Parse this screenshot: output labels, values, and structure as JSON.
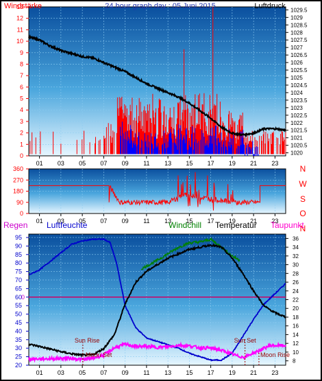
{
  "title": "24 hour graph day : 05 Juni 2015",
  "chart_data": [
    {
      "type": "line",
      "name": "wind-pressure",
      "left_label": "Windstärke",
      "right_label": "Luftdruck",
      "left_ticks": [
        "0",
        "1",
        "2",
        "3",
        "4",
        "5",
        "6",
        "7",
        "8",
        "9",
        "10",
        "11",
        "12",
        "13"
      ],
      "right_ticks": [
        "1020",
        "1020.5",
        "1021",
        "1021.5",
        "1022",
        "1022.5",
        "1023",
        "1023.5",
        "1024",
        "1024.5",
        "1025",
        "1025.5",
        "1026",
        "1026.5",
        "1027",
        "1027.5",
        "1028",
        "1028.5",
        "1029",
        "1029.5"
      ],
      "left_range": [
        0,
        13
      ],
      "right_range": [
        1019.8,
        1029.7
      ],
      "x_ticks": [
        "01",
        "03",
        "05",
        "07",
        "09",
        "11",
        "13",
        "15",
        "17",
        "19",
        "21",
        "23"
      ],
      "pressure_points": [
        [
          0,
          1027.7
        ],
        [
          1,
          1027.5
        ],
        [
          2,
          1027.1
        ],
        [
          3,
          1026.8
        ],
        [
          4,
          1026.6
        ],
        [
          5,
          1026.4
        ],
        [
          6,
          1026.3
        ],
        [
          7,
          1026.0
        ],
        [
          8,
          1025.7
        ],
        [
          9,
          1025.4
        ],
        [
          10,
          1025.0
        ],
        [
          11,
          1024.6
        ],
        [
          12,
          1024.3
        ],
        [
          13,
          1024.0
        ],
        [
          14,
          1023.7
        ],
        [
          15,
          1023.3
        ],
        [
          16,
          1022.8
        ],
        [
          17,
          1022.3
        ],
        [
          18,
          1021.7
        ],
        [
          19,
          1021.3
        ],
        [
          20,
          1021.2
        ],
        [
          21,
          1021.3
        ],
        [
          22,
          1021.6
        ],
        [
          23,
          1021.6
        ],
        [
          24,
          1021.5
        ]
      ],
      "wind_max_spike": 13
    },
    {
      "type": "line",
      "name": "wind-direction",
      "left_ticks": [
        "0",
        "90",
        "180",
        "270",
        "360"
      ],
      "left_range": [
        0,
        360
      ],
      "right_letters": [
        "N",
        "W",
        "S",
        "O",
        "N"
      ],
      "x_ticks": [
        "01",
        "03",
        "05",
        "07",
        "09",
        "11",
        "13",
        "15",
        "17",
        "19",
        "21",
        "23"
      ],
      "direction_points": [
        [
          0,
          225
        ],
        [
          7.5,
          225
        ],
        [
          8.5,
          90
        ],
        [
          13,
          90
        ],
        [
          14.5,
          150
        ],
        [
          17.5,
          110
        ],
        [
          19.5,
          90
        ],
        [
          21.5,
          90
        ],
        [
          21.6,
          225
        ],
        [
          24,
          225
        ]
      ]
    },
    {
      "type": "line",
      "name": "humidity-temperature",
      "labels": {
        "regen": "Regen",
        "humidity": "Luftfeuchte",
        "windchill": "Windchill",
        "temperature": "Temperatur",
        "dewpoint": "Taupunkt"
      },
      "left_ticks": [
        "20",
        "25",
        "30",
        "35",
        "40",
        "45",
        "50",
        "55",
        "60",
        "65",
        "70",
        "75",
        "80",
        "85",
        "90",
        "95"
      ],
      "left_range": [
        20,
        97
      ],
      "right_ticks": [
        "8",
        "10",
        "12",
        "14",
        "16",
        "18",
        "20",
        "22",
        "24",
        "26",
        "28",
        "30",
        "32",
        "34",
        "36"
      ],
      "right_range": [
        7,
        37
      ],
      "regen_tick": "0",
      "x_ticks": [
        "01",
        "03",
        "05",
        "07",
        "09",
        "11",
        "13",
        "15",
        "17",
        "19",
        "21",
        "23"
      ],
      "annotations": [
        "Sun Rise",
        "Moon Set",
        "Sun Set",
        "Moon Rise"
      ],
      "humidity_points": [
        [
          0,
          73
        ],
        [
          1,
          76
        ],
        [
          2,
          81
        ],
        [
          3,
          86
        ],
        [
          4,
          91
        ],
        [
          5,
          93
        ],
        [
          6,
          94
        ],
        [
          7,
          94
        ],
        [
          7.6,
          92
        ],
        [
          8.2,
          80
        ],
        [
          9,
          55
        ],
        [
          10,
          42
        ],
        [
          11,
          36
        ],
        [
          12,
          34
        ],
        [
          13,
          32
        ],
        [
          14,
          30
        ],
        [
          15,
          27
        ],
        [
          16,
          25
        ],
        [
          17,
          23
        ],
        [
          18,
          23
        ],
        [
          19,
          27
        ],
        [
          20,
          37
        ],
        [
          21,
          47
        ],
        [
          22,
          56
        ],
        [
          23,
          62
        ],
        [
          24,
          68
        ]
      ],
      "temperature_points": [
        [
          0,
          11.8
        ],
        [
          1,
          11.3
        ],
        [
          2,
          10.7
        ],
        [
          3,
          10.1
        ],
        [
          4,
          9.6
        ],
        [
          5,
          9.3
        ],
        [
          6,
          9.4
        ],
        [
          7,
          10.8
        ],
        [
          8,
          14
        ],
        [
          9,
          21
        ],
        [
          10,
          26
        ],
        [
          11,
          28.5
        ],
        [
          12,
          30
        ],
        [
          13,
          31.5
        ],
        [
          14,
          32.5
        ],
        [
          15,
          33.5
        ],
        [
          16,
          34
        ],
        [
          17,
          34.5
        ],
        [
          18,
          34
        ],
        [
          19,
          31.5
        ],
        [
          20,
          28
        ],
        [
          21,
          24
        ],
        [
          22,
          20.5
        ],
        [
          23,
          19
        ],
        [
          24,
          18
        ]
      ],
      "windchill_points": [
        [
          10.5,
          29
        ],
        [
          12,
          31
        ],
        [
          14,
          34
        ],
        [
          15,
          35
        ],
        [
          16,
          35.2
        ],
        [
          17,
          35.8
        ],
        [
          18,
          34
        ],
        [
          19,
          32
        ],
        [
          19.7,
          31
        ]
      ],
      "dewpoint_points": [
        [
          0,
          8.4
        ],
        [
          2,
          8.5
        ],
        [
          4,
          8.6
        ],
        [
          5,
          8.3
        ],
        [
          6,
          8.6
        ],
        [
          7,
          9.3
        ],
        [
          8,
          11
        ],
        [
          9,
          11.8
        ],
        [
          10,
          11.3
        ],
        [
          11,
          11.3
        ],
        [
          12,
          11.1
        ],
        [
          13,
          11.2
        ],
        [
          14,
          11.6
        ],
        [
          15,
          11.4
        ],
        [
          16,
          11
        ],
        [
          17,
          10.9
        ],
        [
          17.7,
          10.6
        ],
        [
          18.5,
          10
        ],
        [
          19.5,
          9.1
        ],
        [
          20.2,
          8.8
        ],
        [
          20.8,
          9.6
        ],
        [
          21.5,
          10.3
        ],
        [
          22.5,
          11.5
        ],
        [
          24,
          11.5
        ]
      ],
      "regen_value": 0
    }
  ],
  "colors": {
    "wind_red": "#ff0000",
    "wind_blue": "#0000ff",
    "pressure": "#000000",
    "humidity": "#0000cc",
    "temperature": "#000000",
    "windchill": "#008000",
    "dewpoint": "#ff00ff",
    "regen_line": "#cc0066"
  }
}
